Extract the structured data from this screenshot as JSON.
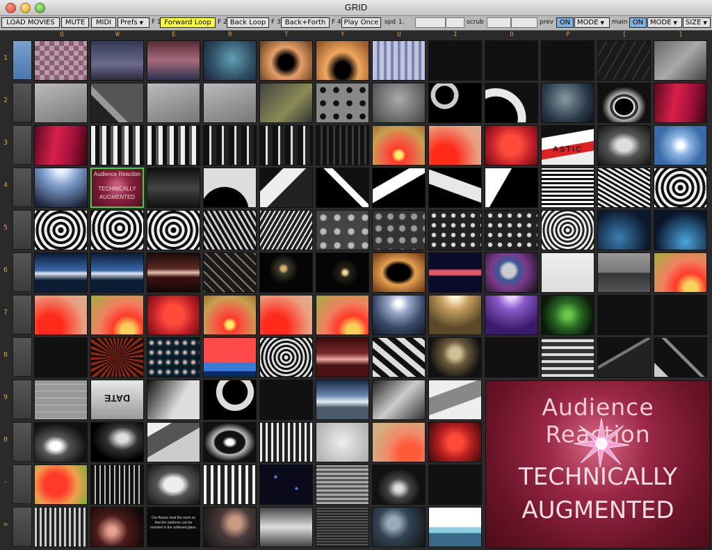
{
  "window": {
    "title": "GRID"
  },
  "toolbar": {
    "load_movies": "LOAD MOVIES",
    "mute": "MUTE",
    "midi": "MIDI",
    "prefs": "Prefs",
    "f1": "F 1",
    "forward_loop": "Forward Loop",
    "f2": "F 2",
    "back_loop": "Back Loop",
    "f3": "F 3",
    "back_forth": "Back+Forth",
    "f4": "F 4",
    "play_once": "Play Once",
    "spd_label": "spd",
    "spd_value": "1.",
    "scrub_label": "scrub",
    "prev_label": "prev",
    "prev_on": "ON",
    "prev_mode": "MODE",
    "main_label": "main",
    "main_on": "ON",
    "main_mode": "MODE",
    "size": "SIZE"
  },
  "columns": [
    "Q",
    "W",
    "E",
    "R",
    "T",
    "Y",
    "U",
    "I",
    "O",
    "P",
    "[",
    "]"
  ],
  "rows": [
    "1",
    "2",
    "3",
    "4",
    "5",
    "6",
    "7",
    "8",
    "9",
    "0",
    "-",
    "="
  ],
  "thumbnails": {
    "r4c2_line1": "Audience Reaction",
    "r4c2_line2": "TECHNICALLY",
    "r4c2_line3": "AUGMENTED",
    "r3c10_text": "ASTIC",
    "r9c2_text": "DATE",
    "r12c3_text": "Our flames heat the room so that the outdoors can be inserted in the softened glass."
  },
  "preview": {
    "line1": "Audience Reaction",
    "line2": "TECHNICALLY",
    "line3": "AUGMENTED"
  },
  "colors": {
    "accent_yellow": "#ffff33",
    "on_blue": "#7fb0de",
    "selection_green": "#3cd43c",
    "key_orange": "#d8a040"
  }
}
